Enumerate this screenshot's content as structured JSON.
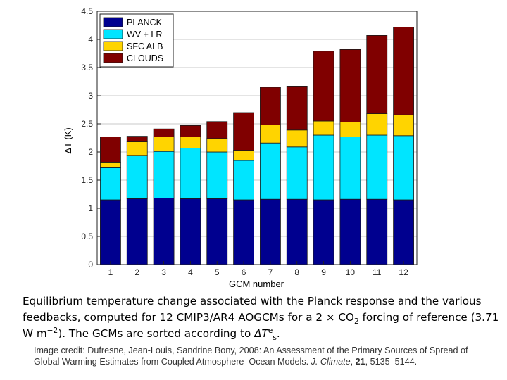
{
  "chart_data": {
    "type": "bar",
    "stacked": true,
    "categories": [
      "1",
      "2",
      "3",
      "4",
      "5",
      "6",
      "7",
      "8",
      "9",
      "10",
      "11",
      "12"
    ],
    "series": [
      {
        "name": "PLANCK",
        "color": "#00008f",
        "values": [
          1.15,
          1.17,
          1.18,
          1.17,
          1.17,
          1.15,
          1.16,
          1.16,
          1.15,
          1.16,
          1.16,
          1.15
        ]
      },
      {
        "name": "WV + LR",
        "color": "#00e5ff",
        "values": [
          0.57,
          0.77,
          0.83,
          0.9,
          0.83,
          0.7,
          1.0,
          0.93,
          1.15,
          1.11,
          1.14,
          1.14
        ]
      },
      {
        "name": "SFC ALB",
        "color": "#ffd400",
        "values": [
          0.1,
          0.24,
          0.26,
          0.2,
          0.24,
          0.18,
          0.32,
          0.3,
          0.25,
          0.26,
          0.38,
          0.37
        ]
      },
      {
        "name": "CLOUDS",
        "color": "#800000",
        "values": [
          0.45,
          0.1,
          0.14,
          0.2,
          0.3,
          0.67,
          0.67,
          0.78,
          1.24,
          1.29,
          1.39,
          1.56
        ]
      }
    ],
    "xlabel": "GCM number",
    "ylabel": "ΔT (K)",
    "ylim": [
      0,
      4.5
    ],
    "yticks": [
      "0",
      "0.5",
      "1",
      "1.5",
      "2",
      "2.5",
      "3",
      "3.5",
      "4",
      "4.5"
    ],
    "grid": "horizontal",
    "legend_position": "top-left"
  },
  "caption": {
    "part1": "Equilibrium temperature change associated with the Planck response and the various feedbacks, computed for 12 CMIP3/AR4 AOGCMs for a 2 × CO",
    "co2_sub": "2",
    "part2": " forcing of reference (3.71 W m",
    "unit_sup": "−2",
    "part3": "). The GCMs are sorted according to ",
    "symbol": "ΔT",
    "symbol_sup": "e",
    "symbol_sub": "s",
    "end": "."
  },
  "credit": {
    "text1": "Image credit: Dufresne, Jean-Louis, Sandrine Bony, 2008: An Assessment of the Primary Sources of Spread of Global Warming Estimates from Coupled Atmosphere–Ocean Models. ",
    "journal": "J. Climate",
    "sep": ", ",
    "volume": "21",
    "pages": ", 5135–5144."
  }
}
